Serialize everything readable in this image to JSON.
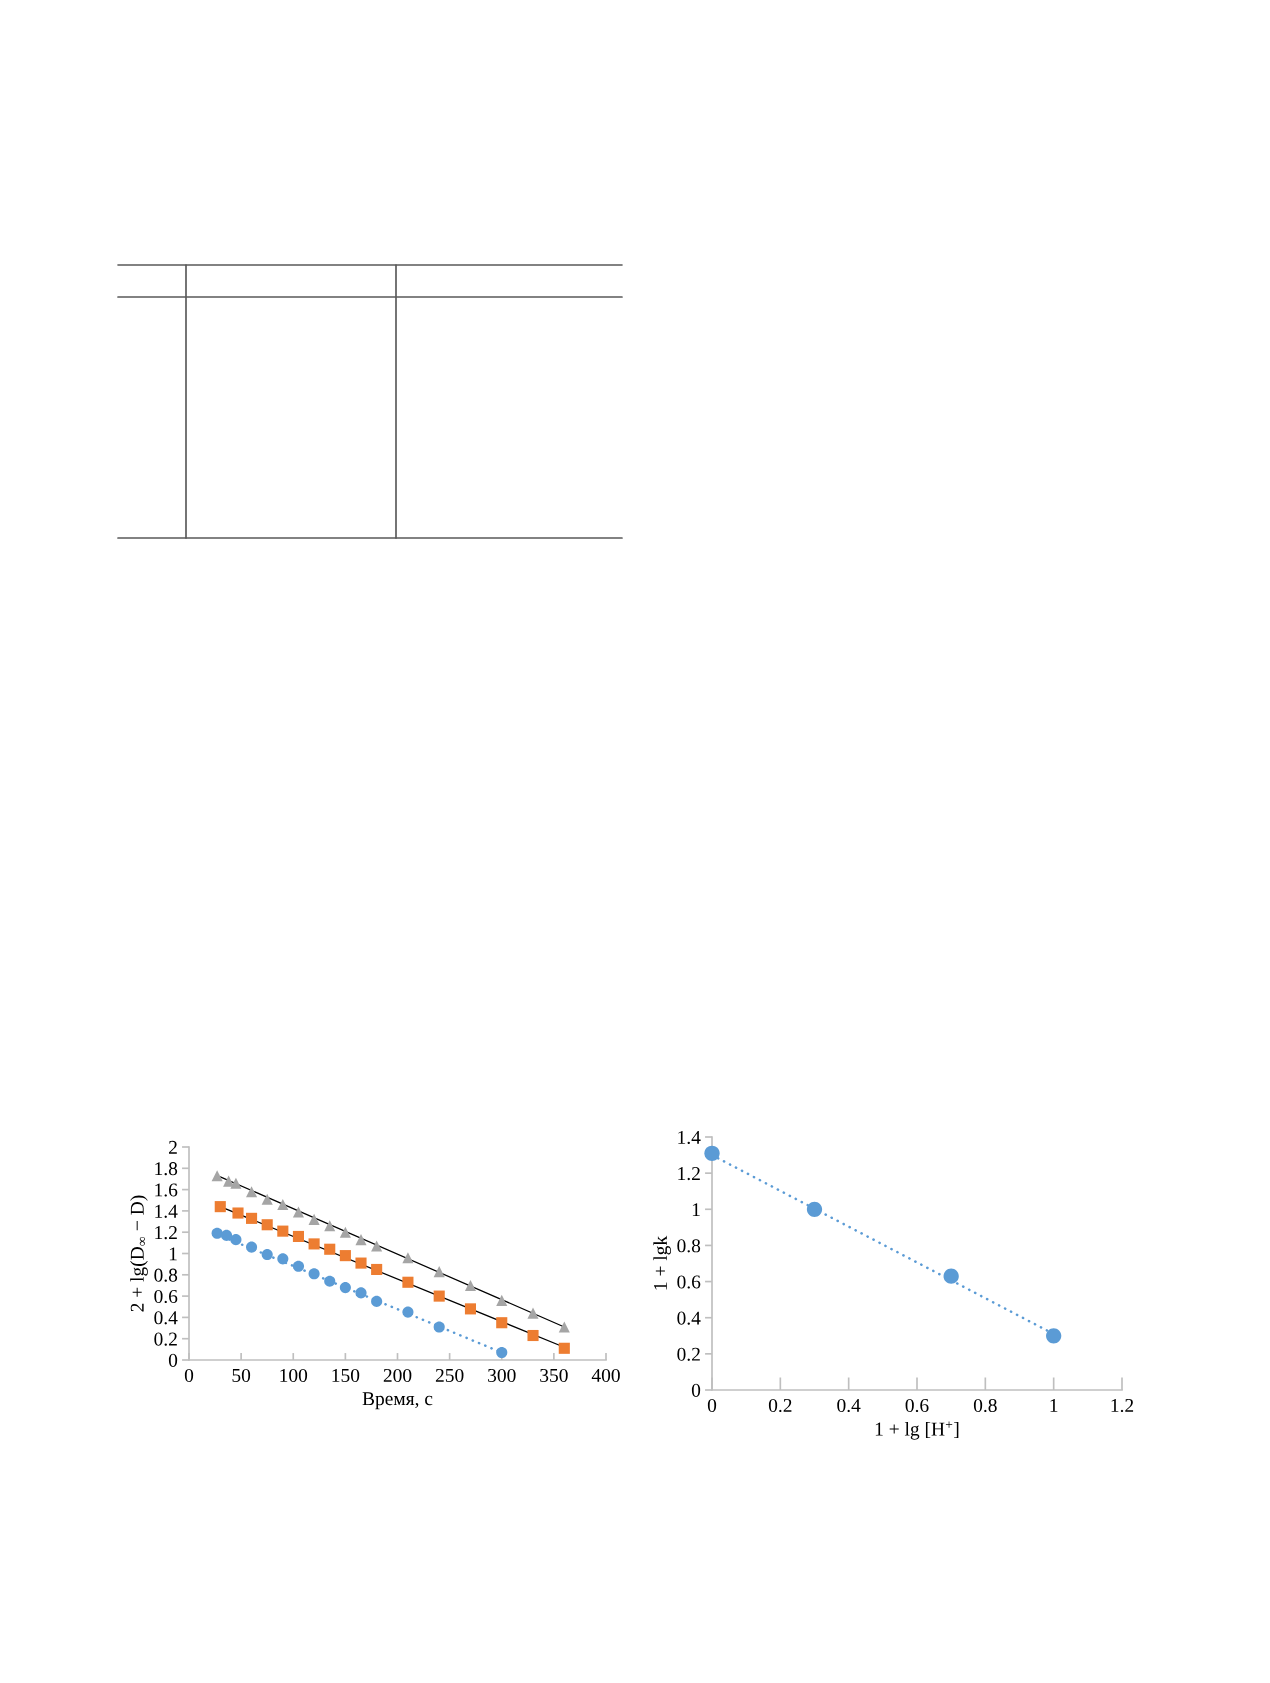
{
  "chart_data": [
    {
      "type": "scatter",
      "xlabel": "Время, с",
      "ylabel": "2 + lg(D$_{∞}$ − D)",
      "xlim": [
        0,
        400
      ],
      "xticks": [
        0,
        50,
        100,
        150,
        200,
        250,
        300,
        350,
        400
      ],
      "ylim": [
        0,
        2
      ],
      "yticks": [
        0,
        0.2,
        0.4,
        0.6,
        0.8,
        1,
        1.2,
        1.4,
        1.6,
        1.8,
        2
      ],
      "series": [
        {
          "color": "#5b9bd5",
          "marker": "circle",
          "x": [
            27,
            36,
            45,
            60,
            75,
            90,
            105,
            120,
            135,
            150,
            165,
            180,
            210,
            240,
            300
          ],
          "values": [
            1.19,
            1.17,
            1.13,
            1.06,
            0.99,
            0.95,
            0.88,
            0.81,
            0.74,
            0.68,
            0.63,
            0.55,
            0.45,
            0.31,
            0.07
          ]
        },
        {
          "color": "#ed7d31",
          "marker": "square",
          "x": [
            30,
            47,
            60,
            75,
            90,
            105,
            120,
            135,
            150,
            165,
            180,
            210,
            240,
            270,
            300,
            330,
            360
          ],
          "values": [
            1.44,
            1.38,
            1.33,
            1.27,
            1.21,
            1.16,
            1.09,
            1.04,
            0.98,
            0.91,
            0.85,
            0.73,
            0.6,
            0.48,
            0.35,
            0.23,
            0.11
          ]
        },
        {
          "color": "#a5a5a5",
          "marker": "triangle",
          "x": [
            27,
            38,
            45,
            60,
            75,
            90,
            105,
            120,
            135,
            150,
            165,
            180,
            210,
            240,
            270,
            300,
            330,
            360
          ],
          "values": [
            1.73,
            1.68,
            1.66,
            1.58,
            1.51,
            1.46,
            1.39,
            1.32,
            1.26,
            1.2,
            1.13,
            1.07,
            0.96,
            0.83,
            0.7,
            0.56,
            0.44,
            0.31
          ]
        },
        {
          "type": "line",
          "color": "#5b9bd5",
          "line_style": "dotted",
          "x": [
            27,
            300
          ],
          "values": [
            1.18,
            0.07
          ]
        },
        {
          "type": "line",
          "color": "#000000",
          "line_style": "solid",
          "x": [
            30,
            360
          ],
          "values": [
            1.44,
            0.12
          ]
        },
        {
          "type": "line",
          "color": "#000000",
          "line_style": "solid",
          "x": [
            30,
            360
          ],
          "values": [
            1.72,
            0.31
          ]
        }
      ]
    },
    {
      "type": "scatter",
      "xlabel": "1 + lg [H$^{+}$]",
      "ylabel": "1 + lgk",
      "xlim": [
        0,
        1.2
      ],
      "xticks": [
        0,
        0.2,
        0.4,
        0.6,
        0.8,
        1,
        1.2
      ],
      "ylim": [
        0,
        1.4
      ],
      "yticks": [
        0,
        0.2,
        0.4,
        0.6,
        0.8,
        1,
        1.2,
        1.4
      ],
      "series": [
        {
          "color": "#5b9bd5",
          "marker": "circle",
          "x": [
            0,
            0.3,
            0.7,
            1
          ],
          "values": [
            1.31,
            1.0,
            0.63,
            0.3
          ]
        },
        {
          "type": "line",
          "color": "#5b9bd5",
          "line_style": "dotted",
          "x": [
            0,
            1
          ],
          "values": [
            1.3,
            0.31
          ]
        }
      ]
    }
  ]
}
